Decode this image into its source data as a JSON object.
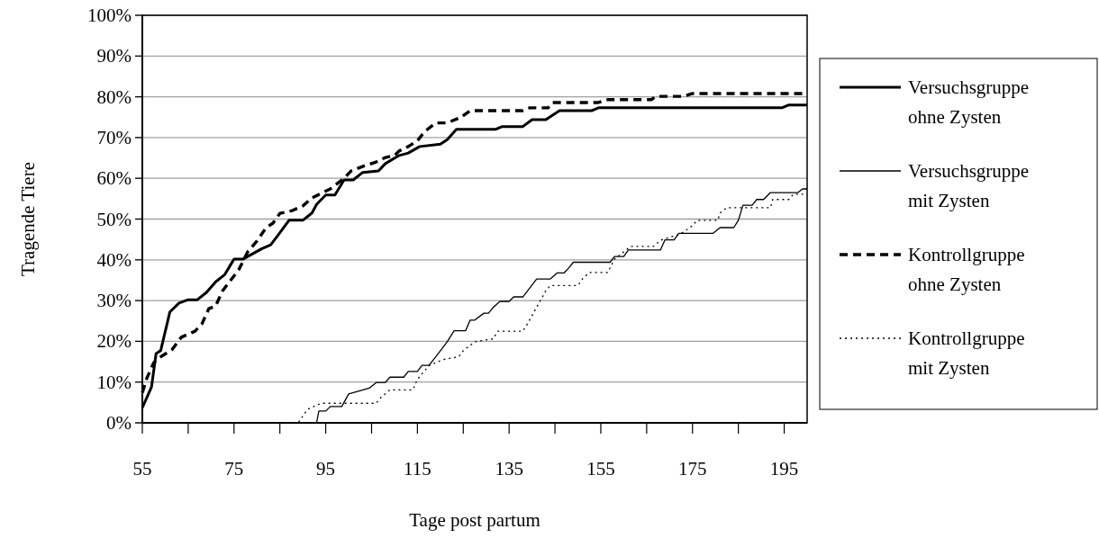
{
  "chart_data": {
    "type": "line",
    "xlabel": "Tage post partum",
    "ylabel": "Tragende Tiere",
    "xlim": [
      55,
      200
    ],
    "xticks": [
      55,
      {
        "value": 65,
        "label": null
      },
      75,
      {
        "value": 85,
        "label": null
      },
      95,
      {
        "value": 105,
        "label": null
      },
      115,
      {
        "value": 125,
        "label": null
      },
      135,
      {
        "value": 145,
        "label": null
      },
      155,
      {
        "value": 165,
        "label": null
      },
      175,
      {
        "value": 185,
        "label": null
      },
      195
    ],
    "ylim": [
      0,
      100
    ],
    "yticks": [
      {
        "value": 0,
        "label": "0%"
      },
      {
        "value": 10,
        "label": "10%"
      },
      {
        "value": 20,
        "label": "20%"
      },
      {
        "value": 30,
        "label": "30%"
      },
      {
        "value": 40,
        "label": "40%"
      },
      {
        "value": 50,
        "label": "50%"
      },
      {
        "value": 60,
        "label": "60%"
      },
      {
        "value": 70,
        "label": "70%"
      },
      {
        "value": 80,
        "label": "80%"
      },
      {
        "value": 90,
        "label": "90%"
      },
      {
        "value": 100,
        "label": "100%"
      }
    ],
    "grid": "y",
    "legend": "right",
    "series": [
      {
        "name": "Versuchsgruppe ohne Zysten",
        "color": "#000000",
        "line_style": "solid",
        "x": [
          55,
          57,
          58,
          59,
          61,
          63,
          65,
          67,
          69,
          71,
          73,
          75,
          77,
          81,
          83,
          84.5,
          87,
          90,
          92,
          93,
          95,
          97,
          99,
          101,
          103,
          106.5,
          108,
          111,
          113,
          115.5,
          120,
          121.5,
          123.5,
          132,
          133.5,
          138,
          140,
          143,
          146,
          153,
          154.5,
          194.5,
          196,
          200
        ],
        "values": [
          3.7,
          8.8,
          17,
          17.7,
          27.2,
          29.4,
          30.2,
          30.2,
          32,
          34.6,
          36.4,
          40.2,
          40.2,
          42.7,
          43.7,
          45.9,
          49.7,
          49.7,
          51.5,
          53.6,
          55.9,
          55.9,
          59.6,
          59.6,
          61.4,
          61.8,
          63.6,
          65.6,
          66.2,
          67.8,
          68.4,
          69.5,
          72,
          72,
          72.7,
          72.7,
          74.4,
          74.4,
          76.6,
          76.6,
          77.3,
          77.3,
          78,
          78
        ]
      },
      {
        "name": "Versuchsgruppe mit Zysten",
        "color": "#000000",
        "line_style": "solid",
        "x": [
          55,
          93,
          93.5,
          95,
          96,
          98.5,
          100,
          104.5,
          106,
          108,
          109,
          112,
          113,
          115,
          116,
          117.5,
          119,
          121.5,
          123,
          125.5,
          126.5,
          127.5,
          129.5,
          130.5,
          131.5,
          133,
          135,
          136,
          138,
          141,
          144,
          145.5,
          147,
          148,
          149,
          157,
          158,
          160,
          161,
          168,
          169,
          171,
          172,
          179.5,
          181,
          184,
          185,
          186,
          188,
          189,
          190.5,
          192,
          198,
          199,
          200
        ],
        "values": [
          0,
          0,
          2.9,
          2.9,
          4,
          4,
          7.1,
          8.5,
          9.9,
          9.9,
          11.2,
          11.2,
          12.6,
          12.6,
          14.1,
          14.1,
          16.2,
          19.9,
          22.6,
          22.6,
          25.2,
          25.2,
          26.9,
          26.9,
          28.3,
          29.8,
          29.8,
          30.9,
          30.9,
          35.3,
          35.3,
          36.8,
          36.8,
          38,
          39.4,
          39.4,
          40.8,
          40.8,
          42.4,
          42.4,
          44.9,
          44.9,
          46.5,
          46.5,
          47.9,
          47.9,
          49.7,
          53.4,
          53.4,
          54.8,
          54.8,
          56.5,
          56.5,
          57.4,
          57.4
        ]
      },
      {
        "name": "Kontrollgruppe ohne Zysten",
        "color": "#000000",
        "line_style": "dashed",
        "x": [
          55,
          56,
          57.5,
          59,
          61.5,
          63.5,
          66.5,
          68,
          69.5,
          71,
          72.5,
          74,
          76,
          78,
          80,
          82,
          83.5,
          85,
          87.5,
          90,
          92,
          96,
          99,
          100.5,
          103,
          106,
          108,
          110,
          111,
          113,
          115,
          116.5,
          119,
          121.5,
          124.5,
          126.5,
          138,
          139.5,
          143.5,
          144.5,
          154.5,
          156.5,
          166,
          167,
          173,
          175,
          200
        ],
        "values": [
          7.4,
          11,
          14.8,
          16.2,
          18,
          21,
          22.5,
          24.3,
          28,
          28.7,
          32.4,
          34.6,
          37.5,
          42,
          44.6,
          47.9,
          49,
          51.4,
          52,
          53.2,
          55.2,
          57.4,
          60,
          61.8,
          62.9,
          64,
          65.1,
          65.6,
          66.7,
          67.8,
          69.2,
          71.4,
          73.6,
          73.6,
          75,
          76.6,
          76.6,
          77.3,
          77.3,
          78.6,
          78.6,
          79.3,
          79.3,
          80.1,
          80.1,
          80.8,
          80.8
        ]
      },
      {
        "name": "Kontrollgruppe mit Zysten",
        "color": "#000000",
        "line_style": "dotted",
        "x": [
          55,
          89,
          91,
          94,
          106,
          107,
          109,
          114,
          115,
          117.5,
          120.5,
          124,
          125,
          127.5,
          131.5,
          132.5,
          138,
          139,
          143,
          144,
          150,
          151,
          152.5,
          156.5,
          158,
          161.5,
          166.5,
          168,
          172.5,
          175,
          176,
          180.5,
          181,
          182.5,
          192,
          192.5,
          196,
          197,
          200
        ],
        "values": [
          0,
          0,
          3.3,
          4.8,
          4.8,
          6.2,
          8.1,
          8.1,
          10.7,
          14,
          15.5,
          16.2,
          17.7,
          19.9,
          20.6,
          22.5,
          22.5,
          24.3,
          32.4,
          33.7,
          33.7,
          35.3,
          36.9,
          36.9,
          40.2,
          43.3,
          43.3,
          44.8,
          46.4,
          48.4,
          49.7,
          49.7,
          51.5,
          52.8,
          52.8,
          54.8,
          54.8,
          56.1,
          56.1
        ]
      }
    ]
  }
}
